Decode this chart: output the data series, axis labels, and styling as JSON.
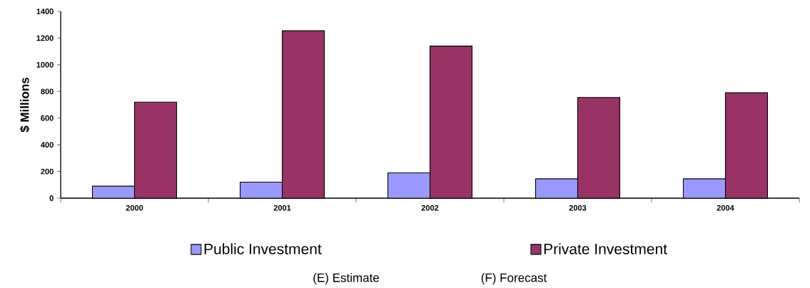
{
  "chart_data": {
    "type": "bar",
    "ylabel": "$ Millions",
    "categories": [
      "2000",
      "2001",
      "2002",
      "2003",
      "2004"
    ],
    "series": [
      {
        "name": "Public Investment",
        "color": "#9999ff",
        "values": [
          90,
          120,
          190,
          145,
          145
        ]
      },
      {
        "name": "Private Investment",
        "color": "#993366",
        "values": [
          720,
          1255,
          1140,
          755,
          790
        ]
      }
    ],
    "ylim": [
      0,
      1400
    ],
    "yticks": [
      0,
      200,
      400,
      600,
      800,
      1000,
      1200,
      1400
    ],
    "grid": false,
    "legend": "bottom",
    "annotations": [
      "(E) Estimate",
      "(F) Forecast"
    ]
  }
}
